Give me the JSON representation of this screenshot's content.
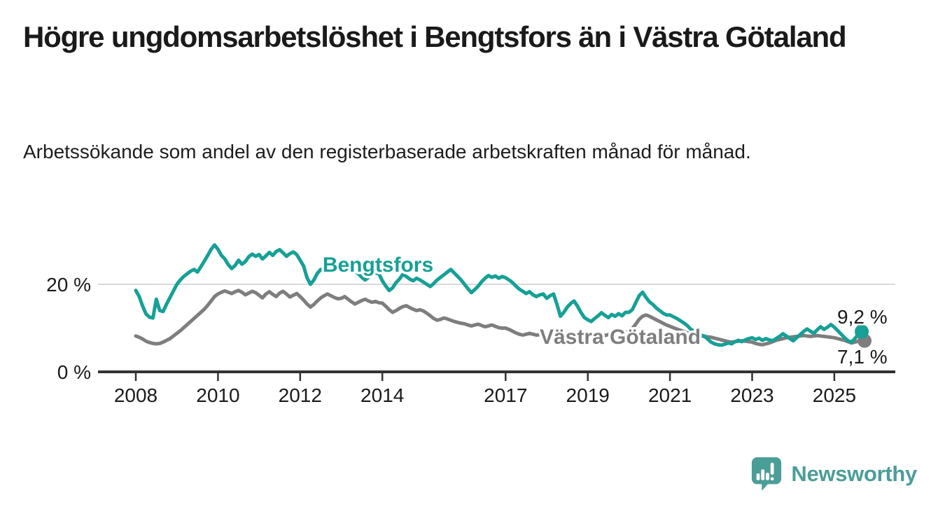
{
  "header": {
    "title": "Högre ungdomsarbetslöshet i Bengtsfors än i Västra Götaland",
    "subtitle": "Arbetssökande som andel av den registerbaserade arbetskraften månad för månad."
  },
  "footer": {
    "brand": "Newsworthy",
    "logo_icon": "speech-bubble-bar-chart-icon"
  },
  "colors": {
    "bengtsfors": "#16a096",
    "vastra_gotaland": "#7e7e7e",
    "axis": "#333333",
    "tick_text": "#1a1a1a",
    "gridline": "#d9d9d9",
    "annotation_text": "#1a1a1a",
    "logo": "#4b9d98",
    "background": "#ffffff"
  },
  "chart_data": {
    "type": "line",
    "title": "Högre ungdomsarbetslöshet i Bengtsfors än i Västra Götaland",
    "subtitle": "Arbetssökande som andel av den registerbaserade arbetskraften månad för månad.",
    "unit": "%",
    "frequency": "monthly",
    "x_start_year": 2008,
    "x_start_month": 1,
    "x_tick_years": [
      2008,
      2010,
      2012,
      2014,
      2017,
      2019,
      2021,
      2023,
      2025
    ],
    "y_ticks": [
      {
        "value": 20,
        "label": "20 %"
      },
      {
        "value": 0,
        "label": "0 %"
      }
    ],
    "y_gridlines": [
      20
    ],
    "ylim": [
      0,
      30
    ],
    "grid": "single light horizontal gridline at 20 %, dark baseline at 0 %",
    "legend_position": "inline labels next to lines",
    "series": [
      {
        "name": "Västra Götaland",
        "color_key": "vastra_gotaland",
        "end_value": 7.1,
        "end_label": "7,1 %",
        "values": [
          8.2,
          7.9,
          7.5,
          7.0,
          6.7,
          6.5,
          6.4,
          6.5,
          6.8,
          7.2,
          7.6,
          8.2,
          8.8,
          9.4,
          10.1,
          10.8,
          11.5,
          12.2,
          12.9,
          13.6,
          14.3,
          15.2,
          16.2,
          17.2,
          17.8,
          18.2,
          18.5,
          18.2,
          17.9,
          18.3,
          18.6,
          18.2,
          17.6,
          18.0,
          18.4,
          18.1,
          17.5,
          16.9,
          17.8,
          18.3,
          17.7,
          17.2,
          18.0,
          18.4,
          17.8,
          17.1,
          17.5,
          17.9,
          17.2,
          16.4,
          15.5,
          14.8,
          15.4,
          16.2,
          16.9,
          17.4,
          17.8,
          17.4,
          17.0,
          16.7,
          16.8,
          17.2,
          16.6,
          16.0,
          15.5,
          15.9,
          16.3,
          16.6,
          16.2,
          15.9,
          16.1,
          15.8,
          15.7,
          15.0,
          14.2,
          13.6,
          14.0,
          14.5,
          14.9,
          15.1,
          14.7,
          14.3,
          14.0,
          14.2,
          13.9,
          13.4,
          12.8,
          12.2,
          11.8,
          12.0,
          12.3,
          12.1,
          11.8,
          11.5,
          11.3,
          11.1,
          11.0,
          10.7,
          10.5,
          10.7,
          10.9,
          10.6,
          10.3,
          10.5,
          10.7,
          10.4,
          10.1,
          10.0,
          10.0,
          9.7,
          9.3,
          8.9,
          8.6,
          8.4,
          8.6,
          8.8,
          8.6,
          8.4,
          8.5,
          8.7,
          8.5,
          8.3,
          8.1,
          7.9,
          7.8,
          8.0,
          8.2,
          8.1,
          7.9,
          7.8,
          7.9,
          8.1,
          8.0,
          7.9,
          7.8,
          7.9,
          8.1,
          8.3,
          8.5,
          8.4,
          8.3,
          8.5,
          8.7,
          9.0,
          9.4,
          9.9,
          10.9,
          12.0,
          12.7,
          13.0,
          12.7,
          12.3,
          11.9,
          11.5,
          11.1,
          10.7,
          10.4,
          10.1,
          9.8,
          9.5,
          9.2,
          8.9,
          8.7,
          8.5,
          8.3,
          8.2,
          8.1,
          8.0,
          7.9,
          7.7,
          7.5,
          7.3,
          7.1,
          6.9,
          6.8,
          6.9,
          7.0,
          7.1,
          7.0,
          6.9,
          6.8,
          6.5,
          6.3,
          6.2,
          6.4,
          6.6,
          6.9,
          7.2,
          7.4,
          7.6,
          7.8,
          7.9,
          8.0,
          8.1,
          8.2,
          8.3,
          8.2,
          8.1,
          8.2,
          8.3,
          8.2,
          8.1,
          8.0,
          7.9,
          7.8,
          7.6,
          7.4,
          7.2,
          6.9,
          6.6,
          6.8,
          7.0,
          7.1
        ]
      },
      {
        "name": "Bengtsfors",
        "color_key": "bengtsfors",
        "end_value": 9.2,
        "end_label": "9,2 %",
        "values": [
          18.6,
          17.2,
          15.0,
          13.2,
          12.5,
          12.3,
          16.6,
          14.0,
          13.8,
          15.5,
          17.0,
          18.5,
          20.0,
          21.0,
          21.8,
          22.4,
          23.0,
          23.4,
          22.8,
          24.0,
          25.3,
          26.6,
          28.0,
          29.0,
          28.0,
          26.6,
          25.8,
          24.5,
          23.6,
          24.3,
          25.5,
          24.6,
          25.2,
          26.3,
          26.9,
          26.4,
          26.8,
          25.8,
          26.5,
          27.3,
          26.6,
          27.5,
          27.9,
          27.2,
          26.4,
          27.0,
          27.4,
          26.8,
          25.5,
          24.2,
          21.5,
          20.0,
          21.0,
          22.5,
          23.4,
          23.0,
          23.4,
          23.8,
          24.0,
          23.5,
          23.2,
          23.8,
          24.2,
          23.6,
          23.0,
          22.4,
          21.6,
          21.0,
          21.6,
          22.2,
          22.6,
          22.4,
          20.8,
          19.6,
          18.6,
          19.2,
          20.4,
          21.2,
          22.3,
          21.8,
          21.2,
          20.8,
          21.4,
          21.0,
          20.5,
          20.0,
          19.5,
          20.2,
          21.0,
          21.6,
          22.2,
          22.8,
          23.4,
          22.6,
          21.8,
          21.0,
          20.0,
          19.0,
          18.1,
          18.8,
          19.6,
          20.6,
          21.4,
          22.0,
          21.6,
          21.9,
          21.4,
          21.8,
          21.5,
          21.0,
          20.4,
          19.6,
          18.9,
          18.4,
          17.9,
          18.3,
          17.6,
          17.2,
          17.6,
          17.8,
          16.8,
          17.4,
          17.8,
          15.4,
          12.7,
          13.6,
          14.8,
          15.6,
          16.2,
          15.0,
          13.6,
          12.4,
          11.9,
          11.5,
          12.2,
          12.8,
          13.5,
          12.9,
          12.4,
          13.1,
          12.7,
          13.3,
          12.8,
          13.6,
          13.6,
          14.2,
          15.8,
          17.4,
          18.2,
          17.0,
          16.0,
          15.4,
          14.6,
          14.0,
          13.4,
          13.0,
          13.0,
          12.6,
          12.2,
          11.7,
          11.2,
          10.6,
          9.8,
          9.3,
          8.8,
          8.4,
          8.2,
          7.5,
          6.8,
          6.4,
          6.2,
          6.1,
          6.3,
          6.6,
          6.4,
          6.9,
          7.2,
          6.9,
          7.3,
          7.6,
          7.8,
          7.4,
          7.7,
          7.2,
          7.6,
          7.3,
          7.1,
          7.6,
          8.1,
          8.7,
          8.2,
          7.6,
          7.1,
          7.8,
          8.5,
          9.2,
          9.8,
          9.3,
          8.8,
          9.6,
          10.3,
          9.7,
          10.2,
          10.8,
          10.2,
          9.4,
          8.6,
          7.8,
          7.1,
          6.8,
          7.6,
          8.6,
          9.2
        ]
      }
    ]
  }
}
